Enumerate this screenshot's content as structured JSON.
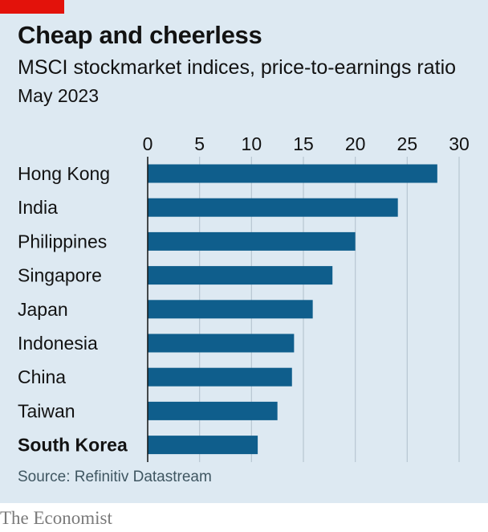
{
  "header": {
    "title": "Cheap and cheerless",
    "subtitle": "MSCI stockmarket indices, price-to-earnings ratio",
    "date": "May 2023"
  },
  "footer": {
    "source": "Source: Refinitiv Datastream",
    "brand": "The Economist"
  },
  "colors": {
    "bar": "#0f5e8c",
    "background": "#dde9f2",
    "gridline": "#b7c6d1",
    "brand_red": "#e3120b"
  },
  "chart_data": {
    "type": "bar",
    "orientation": "horizontal",
    "categories": [
      "Hong Kong",
      "India",
      "Philippines",
      "Singapore",
      "Japan",
      "Indonesia",
      "China",
      "Taiwan",
      "South Korea"
    ],
    "values": [
      27.9,
      24.1,
      20.0,
      17.8,
      15.9,
      14.1,
      13.9,
      12.5,
      10.6
    ],
    "highlight": "South Korea",
    "xticks": [
      0,
      5,
      10,
      15,
      20,
      25,
      30
    ],
    "xlim": [
      0,
      30
    ],
    "grid": true
  }
}
